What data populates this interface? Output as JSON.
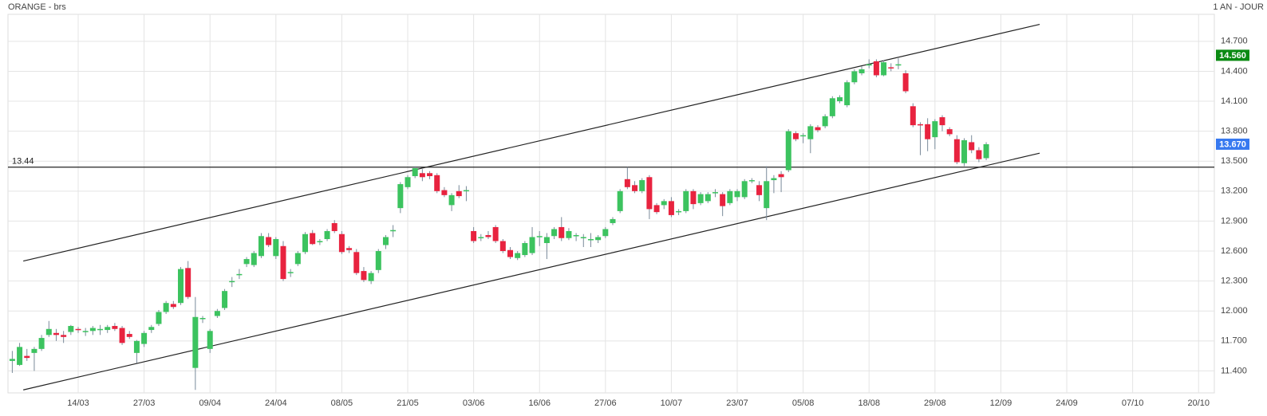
{
  "chart_data": {
    "type": "candlestick",
    "title": "ORANGE - brs",
    "subtitle": "1 AN - JOUR",
    "categories": [
      null,
      null,
      null,
      null,
      null,
      null,
      null,
      null,
      null,
      "14/03",
      null,
      null,
      null,
      null,
      null,
      null,
      null,
      null,
      "27/03",
      null,
      null,
      null,
      null,
      null,
      null,
      null,
      null,
      "09/04",
      null,
      null,
      null,
      null,
      null,
      null,
      null,
      null,
      "24/04",
      null,
      null,
      null,
      null,
      null,
      null,
      null,
      null,
      "08/05",
      null,
      null,
      null,
      null,
      null,
      null,
      null,
      null,
      "21/05",
      null,
      null,
      null,
      null,
      null,
      null,
      null,
      null,
      "03/06",
      null,
      null,
      null,
      null,
      null,
      null,
      null,
      null,
      "16/06",
      null,
      null,
      null,
      null,
      null,
      null,
      null,
      null,
      "27/06",
      null,
      null,
      null,
      null,
      null,
      null,
      null,
      null,
      "10/07",
      null,
      null,
      null,
      null,
      null,
      null,
      null,
      null,
      "23/07",
      null,
      null,
      null,
      null,
      null,
      null,
      null,
      null,
      "05/08",
      null,
      null,
      null,
      null,
      null,
      null,
      null,
      null,
      "18/08",
      null,
      null,
      null,
      null,
      null,
      null,
      null,
      null,
      "29/08",
      null,
      null,
      null,
      null,
      null,
      null,
      null,
      null,
      "12/09",
      null,
      null,
      null,
      null,
      null,
      null,
      null,
      null,
      "24/09",
      null,
      null,
      null,
      null,
      null,
      null,
      null,
      null,
      "07/10",
      null,
      null,
      null,
      null,
      null,
      null,
      null,
      null,
      "20/10",
      null
    ],
    "open": [
      11.5,
      11.46,
      11.55,
      11.58,
      11.62,
      11.76,
      11.78,
      11.76,
      11.79,
      11.82,
      11.79,
      11.8,
      11.81,
      11.81,
      11.85,
      11.83,
      11.77,
      11.58,
      11.67,
      11.81,
      11.87,
      11.99,
      12.07,
      12.08,
      12.43,
      11.43,
      11.92,
      11.62,
      11.95,
      12.03,
      12.29,
      12.36,
      12.47,
      12.46,
      12.55,
      12.74,
      12.55,
      12.65,
      12.38,
      12.47,
      12.59,
      12.78,
      12.69,
      12.72,
      12.88,
      12.77,
      12.63,
      12.59,
      12.4,
      12.3,
      12.41,
      12.66,
      12.8,
      13.03,
      13.24,
      13.35,
      13.38,
      13.38,
      13.36,
      13.21,
      13.06,
      13.2,
      13.2,
      12.8,
      12.73,
      12.76,
      12.84,
      12.7,
      12.61,
      12.53,
      12.56,
      12.58,
      12.74,
      12.68,
      12.75,
      12.84,
      12.73,
      12.75,
      12.73,
      12.71,
      12.71,
      12.75,
      12.88,
      13.0,
      13.32,
      13.26,
      13.2,
      13.34,
      13.06,
      13.06,
      13.1,
      12.99,
      13.0,
      13.2,
      13.08,
      13.1,
      13.18,
      13.17,
      13.08,
      13.14,
      13.14,
      13.3,
      13.26,
      13.03,
      13.31,
      13.37,
      13.41,
      13.78,
      13.75,
      13.72,
      13.84,
      13.85,
      13.95,
      14.1,
      14.06,
      14.29,
      14.38,
      14.46,
      14.5,
      14.36,
      14.44,
      14.46,
      14.38,
      14.05,
      13.87,
      13.87,
      13.74,
      13.94,
      13.82,
      13.72,
      13.48,
      13.69,
      13.61,
      13.53,
      null,
      null,
      null,
      null,
      null,
      null,
      null,
      null,
      null,
      null,
      null,
      null,
      null,
      null,
      null,
      null,
      null,
      null,
      null,
      null,
      null,
      null,
      null,
      null,
      null,
      null,
      null,
      null,
      null,
      null
    ],
    "high": [
      11.6,
      11.68,
      11.62,
      11.64,
      11.76,
      11.9,
      11.82,
      11.8,
      11.86,
      11.84,
      11.83,
      11.85,
      11.86,
      11.86,
      11.88,
      11.85,
      11.8,
      11.71,
      11.8,
      11.86,
      12.01,
      12.1,
      12.1,
      12.44,
      12.5,
      12.14,
      11.95,
      11.82,
      12.02,
      12.22,
      12.34,
      12.42,
      12.54,
      12.6,
      12.78,
      12.78,
      12.74,
      12.7,
      12.42,
      12.6,
      12.79,
      12.81,
      12.72,
      12.82,
      12.91,
      12.8,
      12.65,
      12.62,
      12.44,
      12.4,
      12.62,
      12.76,
      12.86,
      13.29,
      13.36,
      13.45,
      13.42,
      13.4,
      13.38,
      13.24,
      13.18,
      13.26,
      13.25,
      12.84,
      12.77,
      12.8,
      12.86,
      12.72,
      12.64,
      12.6,
      12.7,
      12.84,
      12.8,
      12.78,
      12.84,
      12.94,
      12.83,
      12.78,
      12.77,
      12.78,
      12.76,
      12.84,
      12.94,
      13.22,
      13.44,
      13.3,
      13.33,
      13.36,
      13.08,
      13.12,
      13.14,
      13.02,
      13.22,
      13.22,
      13.19,
      13.19,
      13.22,
      13.19,
      13.22,
      13.22,
      13.32,
      13.33,
      13.3,
      13.45,
      13.36,
      13.4,
      13.82,
      13.8,
      13.78,
      13.87,
      13.86,
      13.97,
      14.15,
      14.16,
      14.31,
      14.42,
      14.45,
      14.52,
      14.52,
      14.51,
      14.48,
      14.53,
      14.41,
      14.08,
      13.89,
      13.93,
      13.92,
      13.96,
      13.84,
      13.76,
      13.73,
      13.76,
      13.64,
      13.69,
      null,
      null,
      null,
      null,
      null,
      null,
      null,
      null,
      null,
      null,
      null,
      null,
      null,
      null,
      null,
      null,
      null,
      null,
      null,
      null,
      null,
      null,
      null,
      null,
      null,
      null,
      null,
      null,
      null,
      null
    ],
    "low": [
      11.38,
      11.45,
      11.5,
      11.4,
      11.6,
      11.74,
      11.7,
      11.68,
      11.76,
      11.78,
      11.75,
      11.76,
      11.76,
      11.78,
      11.8,
      11.66,
      11.72,
      11.48,
      11.64,
      11.78,
      11.85,
      11.97,
      12.02,
      12.06,
      12.12,
      11.21,
      11.88,
      11.58,
      11.93,
      12.01,
      12.24,
      12.32,
      12.44,
      12.44,
      12.53,
      12.64,
      12.52,
      12.3,
      12.34,
      12.45,
      12.57,
      12.66,
      12.66,
      12.7,
      12.78,
      12.57,
      12.58,
      12.36,
      12.29,
      12.27,
      12.38,
      12.62,
      12.74,
      12.98,
      13.22,
      13.33,
      13.3,
      13.32,
      13.18,
      13.14,
      13.0,
      13.13,
      13.1,
      12.68,
      12.7,
      12.72,
      12.68,
      12.58,
      12.52,
      12.51,
      12.54,
      12.56,
      12.65,
      12.52,
      12.72,
      12.7,
      12.71,
      12.7,
      12.64,
      12.64,
      12.68,
      12.73,
      12.86,
      12.98,
      13.22,
      13.18,
      13.18,
      12.92,
      12.97,
      13.02,
      12.94,
      12.96,
      12.98,
      13.02,
      13.06,
      13.08,
      13.14,
      12.95,
      13.06,
      13.1,
      13.12,
      13.28,
      13.1,
      12.91,
      13.18,
      13.19,
      13.39,
      13.7,
      13.68,
      13.58,
      13.79,
      13.83,
      13.93,
      14.08,
      14.04,
      14.27,
      14.36,
      14.43,
      14.34,
      14.35,
      14.4,
      14.42,
      14.18,
      13.84,
      13.56,
      13.6,
      13.62,
      13.8,
      13.75,
      13.47,
      13.45,
      13.58,
      13.49,
      13.51,
      null,
      null,
      null,
      null,
      null,
      null,
      null,
      null,
      null,
      null,
      null,
      null,
      null,
      null,
      null,
      null,
      null,
      null,
      null,
      null,
      null,
      null,
      null,
      null,
      null,
      null,
      null,
      null,
      null,
      null
    ],
    "close": [
      11.52,
      11.64,
      11.53,
      11.62,
      11.73,
      11.82,
      11.76,
      11.74,
      11.85,
      11.81,
      11.8,
      11.83,
      11.82,
      11.84,
      11.82,
      11.68,
      11.74,
      11.7,
      11.78,
      11.84,
      11.99,
      12.08,
      12.04,
      12.42,
      12.14,
      11.94,
      11.93,
      11.8,
      12.0,
      12.2,
      12.3,
      12.37,
      12.52,
      12.58,
      12.75,
      12.66,
      12.72,
      12.32,
      12.39,
      12.58,
      12.77,
      12.67,
      12.7,
      12.8,
      12.8,
      12.59,
      12.61,
      12.38,
      12.31,
      12.38,
      12.6,
      12.74,
      12.81,
      13.27,
      13.34,
      13.43,
      13.34,
      13.35,
      13.2,
      13.16,
      13.16,
      13.15,
      13.21,
      12.7,
      12.74,
      12.74,
      12.7,
      12.6,
      12.54,
      12.58,
      12.68,
      12.74,
      12.75,
      12.74,
      12.82,
      12.73,
      12.8,
      12.76,
      12.74,
      12.72,
      12.74,
      12.82,
      12.92,
      13.2,
      13.24,
      13.2,
      13.31,
      13.02,
      12.99,
      13.1,
      12.96,
      13.0,
      13.2,
      13.07,
      13.17,
      13.17,
      13.19,
      13.05,
      13.2,
      13.2,
      13.3,
      13.31,
      13.16,
      13.3,
      13.33,
      13.34,
      13.8,
      13.72,
      13.76,
      13.85,
      13.81,
      13.95,
      14.13,
      14.14,
      14.29,
      14.4,
      14.42,
      14.47,
      14.36,
      14.49,
      14.43,
      14.47,
      14.2,
      13.86,
      13.86,
      13.72,
      13.9,
      13.86,
      13.77,
      13.49,
      13.71,
      13.61,
      13.52,
      13.67,
      null,
      null,
      null,
      null,
      null,
      null,
      null,
      null,
      null,
      null,
      null,
      null,
      null,
      null,
      null,
      null,
      null,
      null,
      null,
      null,
      null,
      null,
      null,
      null,
      null,
      null,
      null,
      null,
      null,
      null
    ],
    "up_color": "#3cc35f",
    "down_color": "#e8233f",
    "ylim": [
      11.18,
      14.97
    ],
    "yticks": [
      {
        "value": 11.4,
        "label": "11.400"
      },
      {
        "value": 11.7,
        "label": "11.700"
      },
      {
        "value": 12.0,
        "label": "12.000"
      },
      {
        "value": 12.3,
        "label": "12.300"
      },
      {
        "value": 12.6,
        "label": "12.600"
      },
      {
        "value": 12.9,
        "label": "12.900"
      },
      {
        "value": 13.2,
        "label": "13.200"
      },
      {
        "value": 13.5,
        "label": "13.500"
      },
      {
        "value": 13.8,
        "label": "13.800"
      },
      {
        "value": 14.1,
        "label": "14.100"
      },
      {
        "value": 14.4,
        "label": "14.400"
      },
      {
        "value": 14.7,
        "label": "14.700"
      }
    ],
    "grid": true,
    "hline": {
      "value": 13.44,
      "label": 13.44
    },
    "price_tags": [
      {
        "value": 14.56,
        "label": "14.560",
        "color": "#0a8a12"
      },
      {
        "value": 13.67,
        "label": "13.670",
        "color": "#3779f0"
      }
    ],
    "trendlines": [
      {
        "y": [
          12.5,
          14.87
        ]
      },
      {
        "y": [
          11.21,
          13.58
        ]
      }
    ]
  }
}
